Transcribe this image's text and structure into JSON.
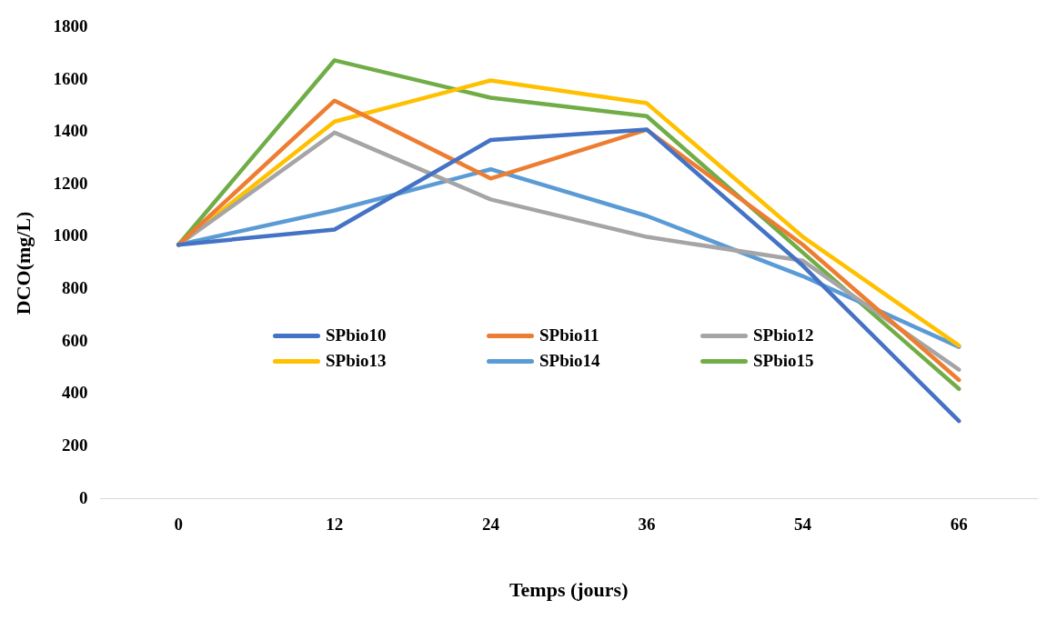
{
  "chart_data": {
    "type": "line",
    "xlabel": "Temps (jours)",
    "ylabel": "DCO(mg/L)",
    "categories": [
      "0",
      "12",
      "24",
      "36",
      "54",
      "66"
    ],
    "series": [
      {
        "name": "SPbio10",
        "color": "#4472c4",
        "values": [
          970,
          1028,
          1370,
          1410,
          890,
          297
        ]
      },
      {
        "name": "SPbio11",
        "color": "#ed7d31",
        "values": [
          970,
          1520,
          1223,
          1409,
          970,
          454
        ]
      },
      {
        "name": "SPbio12",
        "color": "#a5a5a5",
        "values": [
          970,
          1398,
          1143,
          1000,
          909,
          493
        ]
      },
      {
        "name": "SPbio13",
        "color": "#ffc000",
        "values": [
          970,
          1440,
          1597,
          1510,
          1000,
          585
        ]
      },
      {
        "name": "SPbio14",
        "color": "#5b9bd5",
        "values": [
          970,
          1101,
          1258,
          1080,
          850,
          580
        ]
      },
      {
        "name": "SPbio15",
        "color": "#70ad47",
        "values": [
          970,
          1674,
          1531,
          1461,
          940,
          420
        ]
      }
    ],
    "ylim": [
      0,
      1800
    ],
    "yticks": [
      0,
      200,
      400,
      600,
      800,
      1000,
      1200,
      1400,
      1600,
      1800
    ],
    "grid": false,
    "legend": "center",
    "marker": "none",
    "line_style": "solid"
  }
}
